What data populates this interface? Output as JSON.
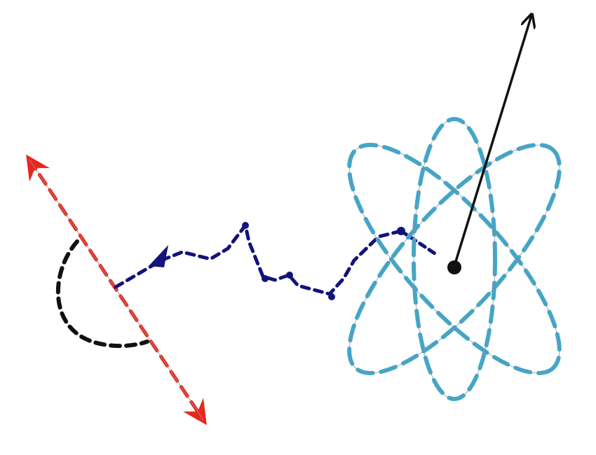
{
  "diagram": {
    "description_free": true,
    "colors": {
      "background": "#ffffff",
      "double_arrow": "#e8261c",
      "arc": "#111111",
      "path": "#13137a",
      "orbits": "#3ea9cf",
      "vector": "#111111",
      "nucleus": "#111111"
    },
    "elements": {
      "double_arrow": {
        "style": "dashed",
        "heads": "both"
      },
      "angle_arc": {
        "style": "dashed"
      },
      "random_walk": {
        "style": "dashed",
        "markers": "dots"
      },
      "atom": {
        "orbits": 3,
        "style": "dashed"
      },
      "momentum_vector": {
        "style": "solid",
        "heads": "end"
      }
    }
  }
}
